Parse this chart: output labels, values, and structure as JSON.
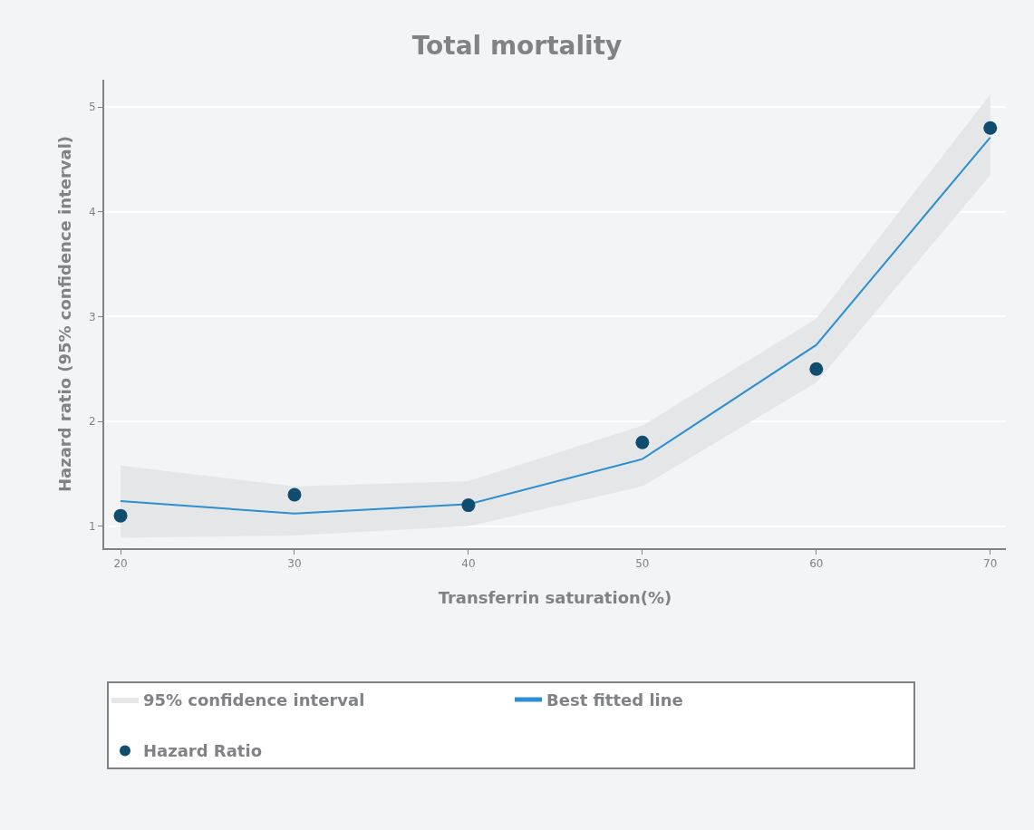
{
  "chart_data": {
    "type": "line",
    "title": "Total mortality",
    "xlabel": "Transferrin saturation(%)",
    "ylabel": "Hazard ratio (95% confidence interval)",
    "x": [
      20,
      30,
      40,
      50,
      60,
      70
    ],
    "series": [
      {
        "name": "95% confidence interval",
        "type": "area",
        "color": "#e5e6e8",
        "values": [
          null,
          null,
          null,
          null,
          null,
          null
        ],
        "lower": [
          0.89,
          0.91,
          1.0,
          1.38,
          2.37,
          4.35
        ],
        "upper": [
          1.58,
          1.38,
          1.43,
          1.96,
          2.98,
          5.12
        ]
      },
      {
        "name": "Best fitted line",
        "color": "#2b8fd0",
        "values": [
          1.24,
          1.12,
          1.21,
          1.64,
          2.73,
          4.71
        ]
      },
      {
        "name": "Hazard Ratio",
        "type": "scatter",
        "marker": "circle",
        "color": "#0f4c6e",
        "values": [
          1.1,
          1.3,
          1.2,
          1.8,
          2.5,
          4.8
        ]
      }
    ],
    "xlim": [
      19.06,
      70.9
    ],
    "xticks": [
      20,
      30,
      40,
      50,
      60,
      70
    ],
    "ylim": [
      0.79,
      5.26
    ],
    "yticks": [
      1,
      2,
      3,
      4,
      5
    ],
    "grid": "y",
    "legend": "bottom"
  }
}
